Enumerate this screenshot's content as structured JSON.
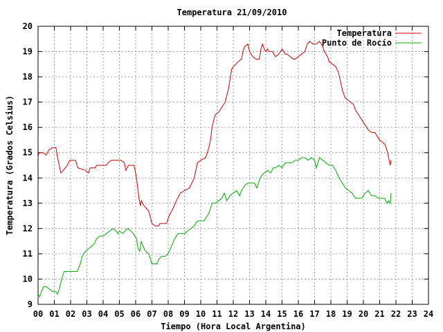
{
  "chart_data": {
    "type": "line",
    "title": "Temperatura 21/09/2010",
    "xlabel": "Tiempo (Hora Local Argentina)",
    "ylabel": "Temperatura (Grados Celsius)",
    "xlim": [
      0,
      24
    ],
    "ylim": [
      9,
      20
    ],
    "x_ticks": [
      "00",
      "01",
      "02",
      "03",
      "04",
      "05",
      "06",
      "07",
      "08",
      "09",
      "10",
      "11",
      "12",
      "13",
      "14",
      "15",
      "16",
      "17",
      "18",
      "19",
      "20",
      "21",
      "22",
      "23",
      "24"
    ],
    "y_ticks": [
      "9",
      "10",
      "11",
      "12",
      "13",
      "14",
      "15",
      "16",
      "17",
      "18",
      "19",
      "20"
    ],
    "grid": true,
    "legend_position": "top-right",
    "series": [
      {
        "name": "Temperatura",
        "color": "#cc0000",
        "points": [
          [
            0.0,
            14.8
          ],
          [
            0.05,
            15.0
          ],
          [
            0.3,
            15.0
          ],
          [
            0.5,
            14.9
          ],
          [
            0.65,
            15.1
          ],
          [
            0.9,
            15.2
          ],
          [
            1.1,
            15.2
          ],
          [
            1.2,
            14.8
          ],
          [
            1.4,
            14.2
          ],
          [
            1.55,
            14.3
          ],
          [
            1.8,
            14.5
          ],
          [
            1.95,
            14.7
          ],
          [
            2.3,
            14.7
          ],
          [
            2.45,
            14.4
          ],
          [
            2.9,
            14.3
          ],
          [
            3.1,
            14.2
          ],
          [
            3.2,
            14.4
          ],
          [
            3.5,
            14.4
          ],
          [
            3.6,
            14.5
          ],
          [
            4.0,
            14.5
          ],
          [
            4.2,
            14.5
          ],
          [
            4.3,
            14.6
          ],
          [
            4.5,
            14.7
          ],
          [
            5.1,
            14.7
          ],
          [
            5.3,
            14.6
          ],
          [
            5.4,
            14.3
          ],
          [
            5.55,
            14.5
          ],
          [
            5.9,
            14.5
          ],
          [
            6.05,
            14.0
          ],
          [
            6.2,
            13.2
          ],
          [
            6.3,
            12.9
          ],
          [
            6.35,
            13.1
          ],
          [
            6.5,
            12.9
          ],
          [
            6.8,
            12.7
          ],
          [
            7.0,
            12.2
          ],
          [
            7.2,
            12.1
          ],
          [
            7.4,
            12.1
          ],
          [
            7.5,
            12.2
          ],
          [
            7.9,
            12.2
          ],
          [
            8.05,
            12.5
          ],
          [
            8.3,
            12.8
          ],
          [
            8.5,
            13.1
          ],
          [
            8.75,
            13.4
          ],
          [
            9.0,
            13.5
          ],
          [
            9.3,
            13.6
          ],
          [
            9.6,
            14.0
          ],
          [
            9.8,
            14.6
          ],
          [
            10.0,
            14.7
          ],
          [
            10.3,
            14.8
          ],
          [
            10.5,
            15.2
          ],
          [
            10.6,
            15.5
          ],
          [
            10.7,
            16.0
          ],
          [
            10.8,
            16.3
          ],
          [
            10.9,
            16.5
          ],
          [
            11.1,
            16.6
          ],
          [
            11.3,
            16.8
          ],
          [
            11.5,
            17.0
          ],
          [
            11.7,
            17.5
          ],
          [
            11.8,
            17.9
          ],
          [
            11.9,
            18.3
          ],
          [
            12.0,
            18.4
          ],
          [
            12.3,
            18.6
          ],
          [
            12.5,
            18.7
          ],
          [
            12.6,
            19.0
          ],
          [
            12.7,
            19.2
          ],
          [
            12.9,
            19.3
          ],
          [
            13.0,
            19.0
          ],
          [
            13.1,
            18.9
          ],
          [
            13.2,
            18.8
          ],
          [
            13.4,
            18.7
          ],
          [
            13.6,
            18.7
          ],
          [
            13.7,
            19.1
          ],
          [
            13.8,
            19.3
          ],
          [
            13.9,
            19.1
          ],
          [
            14.0,
            19.0
          ],
          [
            14.1,
            19.1
          ],
          [
            14.2,
            19.0
          ],
          [
            14.4,
            19.0
          ],
          [
            14.5,
            18.9
          ],
          [
            14.6,
            18.8
          ],
          [
            14.8,
            18.9
          ],
          [
            15.0,
            19.1
          ],
          [
            15.2,
            18.9
          ],
          [
            15.3,
            18.9
          ],
          [
            15.5,
            18.8
          ],
          [
            15.7,
            18.7
          ],
          [
            15.8,
            18.7
          ],
          [
            16.0,
            18.8
          ],
          [
            16.2,
            18.9
          ],
          [
            16.4,
            19.0
          ],
          [
            16.55,
            19.3
          ],
          [
            16.7,
            19.4
          ],
          [
            16.9,
            19.3
          ],
          [
            17.1,
            19.3
          ],
          [
            17.3,
            19.4
          ],
          [
            17.5,
            19.2
          ],
          [
            17.6,
            19.0
          ],
          [
            17.8,
            18.8
          ],
          [
            17.9,
            18.6
          ],
          [
            18.1,
            18.5
          ],
          [
            18.3,
            18.4
          ],
          [
            18.45,
            18.2
          ],
          [
            18.6,
            17.8
          ],
          [
            18.7,
            17.5
          ],
          [
            18.85,
            17.2
          ],
          [
            19.0,
            17.1
          ],
          [
            19.2,
            17.0
          ],
          [
            19.4,
            16.9
          ],
          [
            19.5,
            16.7
          ],
          [
            19.7,
            16.5
          ],
          [
            19.9,
            16.3
          ],
          [
            20.1,
            16.1
          ],
          [
            20.3,
            15.9
          ],
          [
            20.5,
            15.8
          ],
          [
            20.7,
            15.8
          ],
          [
            20.9,
            15.6
          ],
          [
            21.0,
            15.5
          ],
          [
            21.2,
            15.4
          ],
          [
            21.35,
            15.3
          ],
          [
            21.45,
            15.1
          ],
          [
            21.55,
            14.8
          ],
          [
            21.65,
            14.5
          ],
          [
            21.7,
            14.7
          ]
        ]
      },
      {
        "name": "Punto de Rocío",
        "color": "#00aa00",
        "points": [
          [
            0.0,
            9.4
          ],
          [
            0.1,
            9.3
          ],
          [
            0.2,
            9.5
          ],
          [
            0.35,
            9.7
          ],
          [
            0.5,
            9.7
          ],
          [
            0.7,
            9.6
          ],
          [
            0.9,
            9.5
          ],
          [
            1.1,
            9.5
          ],
          [
            1.2,
            9.4
          ],
          [
            1.3,
            9.6
          ],
          [
            1.45,
            10.0
          ],
          [
            1.6,
            10.3
          ],
          [
            1.8,
            10.3
          ],
          [
            2.0,
            10.3
          ],
          [
            2.2,
            10.3
          ],
          [
            2.4,
            10.3
          ],
          [
            2.6,
            10.6
          ],
          [
            2.7,
            10.9
          ],
          [
            2.9,
            11.1
          ],
          [
            3.1,
            11.2
          ],
          [
            3.3,
            11.3
          ],
          [
            3.45,
            11.4
          ],
          [
            3.6,
            11.6
          ],
          [
            3.8,
            11.7
          ],
          [
            4.0,
            11.7
          ],
          [
            4.2,
            11.8
          ],
          [
            4.4,
            11.9
          ],
          [
            4.6,
            12.0
          ],
          [
            4.8,
            11.9
          ],
          [
            4.9,
            11.8
          ],
          [
            5.0,
            11.9
          ],
          [
            5.2,
            11.8
          ],
          [
            5.35,
            11.9
          ],
          [
            5.5,
            12.0
          ],
          [
            5.7,
            11.9
          ],
          [
            5.85,
            11.8
          ],
          [
            5.95,
            11.7
          ],
          [
            6.05,
            11.6
          ],
          [
            6.15,
            11.2
          ],
          [
            6.25,
            11.1
          ],
          [
            6.35,
            11.5
          ],
          [
            6.45,
            11.3
          ],
          [
            6.6,
            11.1
          ],
          [
            6.8,
            11.0
          ],
          [
            6.9,
            10.8
          ],
          [
            7.0,
            10.6
          ],
          [
            7.2,
            10.6
          ],
          [
            7.3,
            10.6
          ],
          [
            7.45,
            10.8
          ],
          [
            7.6,
            10.9
          ],
          [
            7.8,
            10.9
          ],
          [
            8.0,
            11.0
          ],
          [
            8.2,
            11.3
          ],
          [
            8.4,
            11.6
          ],
          [
            8.6,
            11.8
          ],
          [
            8.8,
            11.8
          ],
          [
            9.0,
            11.8
          ],
          [
            9.2,
            11.9
          ],
          [
            9.4,
            12.0
          ],
          [
            9.6,
            12.1
          ],
          [
            9.8,
            12.3
          ],
          [
            10.0,
            12.3
          ],
          [
            10.2,
            12.3
          ],
          [
            10.4,
            12.5
          ],
          [
            10.5,
            12.6
          ],
          [
            10.6,
            12.8
          ],
          [
            10.7,
            13.0
          ],
          [
            10.9,
            13.0
          ],
          [
            11.1,
            13.1
          ],
          [
            11.3,
            13.2
          ],
          [
            11.45,
            13.4
          ],
          [
            11.6,
            13.1
          ],
          [
            11.8,
            13.3
          ],
          [
            12.0,
            13.4
          ],
          [
            12.2,
            13.5
          ],
          [
            12.4,
            13.3
          ],
          [
            12.5,
            13.5
          ],
          [
            12.7,
            13.7
          ],
          [
            12.9,
            13.8
          ],
          [
            13.1,
            13.8
          ],
          [
            13.3,
            13.8
          ],
          [
            13.45,
            13.6
          ],
          [
            13.6,
            13.9
          ],
          [
            13.75,
            14.1
          ],
          [
            13.9,
            14.2
          ],
          [
            14.1,
            14.3
          ],
          [
            14.3,
            14.2
          ],
          [
            14.45,
            14.4
          ],
          [
            14.6,
            14.4
          ],
          [
            14.8,
            14.5
          ],
          [
            15.0,
            14.4
          ],
          [
            15.2,
            14.6
          ],
          [
            15.4,
            14.6
          ],
          [
            15.6,
            14.6
          ],
          [
            15.8,
            14.7
          ],
          [
            16.0,
            14.7
          ],
          [
            16.2,
            14.8
          ],
          [
            16.4,
            14.8
          ],
          [
            16.6,
            14.7
          ],
          [
            16.8,
            14.8
          ],
          [
            17.0,
            14.7
          ],
          [
            17.1,
            14.4
          ],
          [
            17.3,
            14.8
          ],
          [
            17.5,
            14.7
          ],
          [
            17.7,
            14.6
          ],
          [
            17.9,
            14.5
          ],
          [
            18.1,
            14.5
          ],
          [
            18.3,
            14.3
          ],
          [
            18.5,
            14.0
          ],
          [
            18.7,
            13.8
          ],
          [
            18.9,
            13.6
          ],
          [
            19.1,
            13.5
          ],
          [
            19.3,
            13.4
          ],
          [
            19.5,
            13.2
          ],
          [
            19.7,
            13.2
          ],
          [
            19.9,
            13.2
          ],
          [
            20.1,
            13.4
          ],
          [
            20.3,
            13.5
          ],
          [
            20.5,
            13.3
          ],
          [
            20.7,
            13.3
          ],
          [
            20.9,
            13.2
          ],
          [
            21.1,
            13.2
          ],
          [
            21.3,
            13.2
          ],
          [
            21.45,
            13.0
          ],
          [
            21.55,
            13.1
          ],
          [
            21.65,
            13.0
          ],
          [
            21.7,
            13.4
          ]
        ]
      }
    ]
  }
}
